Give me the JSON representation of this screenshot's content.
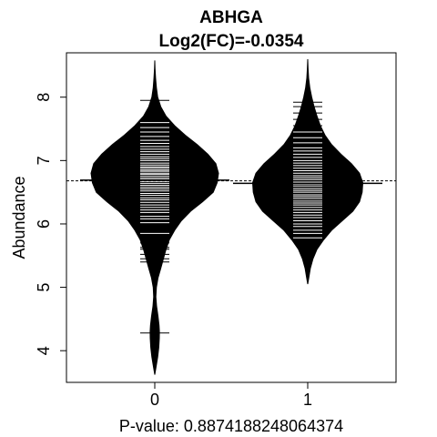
{
  "chart_data": {
    "type": "beanplot",
    "title": "ABHGA",
    "subtitle": "Log2(FC)=-0.0354",
    "xlabel": "P-value: 0.8874188248064374",
    "ylabel": "Abundance",
    "categories": [
      "0",
      "1"
    ],
    "ylim": [
      3.5,
      8.7
    ],
    "yticks": [
      4,
      5,
      6,
      7,
      8
    ],
    "overall_mean": 6.68,
    "grid": false,
    "legend": "none",
    "colors": {
      "bean": "#000000",
      "stripe": "#ffffff",
      "background": "#ffffff"
    },
    "series": [
      {
        "name": "0",
        "group_mean": 6.69,
        "density": [
          [
            3.62,
            0.0
          ],
          [
            3.75,
            0.01
          ],
          [
            3.9,
            0.022
          ],
          [
            4.05,
            0.03
          ],
          [
            4.2,
            0.034
          ],
          [
            4.3,
            0.035
          ],
          [
            4.4,
            0.032
          ],
          [
            4.55,
            0.024
          ],
          [
            4.7,
            0.014
          ],
          [
            4.85,
            0.008
          ],
          [
            5.0,
            0.012
          ],
          [
            5.15,
            0.025
          ],
          [
            5.3,
            0.045
          ],
          [
            5.45,
            0.065
          ],
          [
            5.6,
            0.085
          ],
          [
            5.75,
            0.11
          ],
          [
            5.9,
            0.15
          ],
          [
            6.05,
            0.2
          ],
          [
            6.2,
            0.27
          ],
          [
            6.35,
            0.36
          ],
          [
            6.5,
            0.44
          ],
          [
            6.65,
            0.47
          ],
          [
            6.8,
            0.48
          ],
          [
            6.95,
            0.46
          ],
          [
            7.1,
            0.4
          ],
          [
            7.25,
            0.32
          ],
          [
            7.4,
            0.23
          ],
          [
            7.55,
            0.15
          ],
          [
            7.7,
            0.085
          ],
          [
            7.85,
            0.045
          ],
          [
            8.0,
            0.022
          ],
          [
            8.15,
            0.012
          ],
          [
            8.3,
            0.006
          ],
          [
            8.45,
            0.002
          ],
          [
            8.58,
            0.0
          ]
        ],
        "points": [
          4.28,
          5.4,
          5.45,
          5.52,
          5.6,
          5.63,
          5.7,
          5.75,
          5.85,
          6.02,
          6.08,
          6.12,
          6.18,
          6.22,
          6.26,
          6.3,
          6.34,
          6.38,
          6.41,
          6.45,
          6.48,
          6.52,
          6.55,
          6.58,
          6.61,
          6.64,
          6.67,
          6.7,
          6.72,
          6.75,
          6.78,
          6.8,
          6.83,
          6.85,
          6.88,
          6.9,
          6.93,
          6.96,
          7.0,
          7.03,
          7.06,
          7.1,
          7.14,
          7.18,
          7.22,
          7.27,
          7.32,
          7.38,
          7.45,
          7.52,
          7.6,
          7.95
        ]
      },
      {
        "name": "1",
        "group_mean": 6.64,
        "density": [
          [
            5.05,
            0.0
          ],
          [
            5.15,
            0.008
          ],
          [
            5.3,
            0.02
          ],
          [
            5.45,
            0.04
          ],
          [
            5.6,
            0.07
          ],
          [
            5.75,
            0.12
          ],
          [
            5.9,
            0.18
          ],
          [
            6.05,
            0.26
          ],
          [
            6.2,
            0.34
          ],
          [
            6.35,
            0.39
          ],
          [
            6.5,
            0.41
          ],
          [
            6.65,
            0.415
          ],
          [
            6.8,
            0.39
          ],
          [
            6.95,
            0.33
          ],
          [
            7.1,
            0.25
          ],
          [
            7.25,
            0.18
          ],
          [
            7.4,
            0.13
          ],
          [
            7.55,
            0.095
          ],
          [
            7.7,
            0.07
          ],
          [
            7.85,
            0.048
          ],
          [
            8.0,
            0.03
          ],
          [
            8.15,
            0.016
          ],
          [
            8.3,
            0.007
          ],
          [
            8.45,
            0.003
          ],
          [
            8.6,
            0.0
          ]
        ],
        "points": [
          5.78,
          5.85,
          5.9,
          5.96,
          6.0,
          6.05,
          6.1,
          6.14,
          6.18,
          6.22,
          6.26,
          6.3,
          6.33,
          6.36,
          6.4,
          6.43,
          6.46,
          6.5,
          6.53,
          6.56,
          6.6,
          6.63,
          6.66,
          6.7,
          6.73,
          6.76,
          6.8,
          6.84,
          6.88,
          6.92,
          6.96,
          7.0,
          7.05,
          7.1,
          7.15,
          7.2,
          7.28,
          7.36,
          7.45,
          7.55,
          7.65,
          7.75,
          7.85,
          7.92
        ]
      }
    ]
  }
}
